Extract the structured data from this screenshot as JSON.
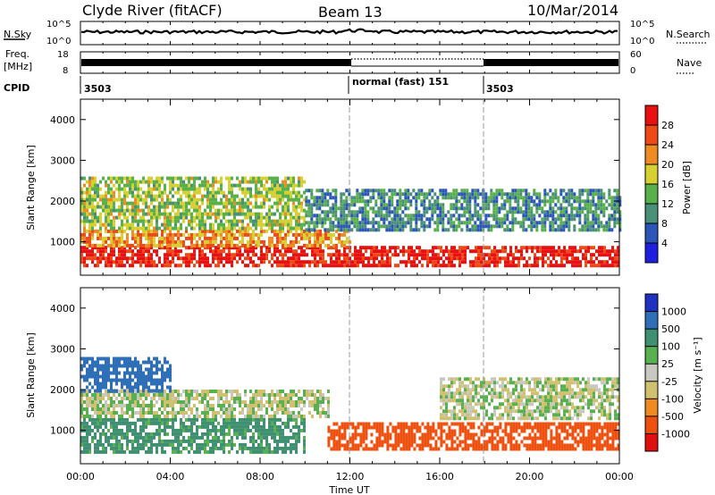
{
  "header": {
    "station": "Clyde River (fitACF)",
    "beam": "Beam 13",
    "date": "10/Mar/2014"
  },
  "noise_panel": {
    "left_label": "N.Sky",
    "right_label": "N.Search",
    "left_ticks": [
      "10^5",
      "10^0"
    ],
    "right_ticks": [
      "10^5",
      "10^0"
    ]
  },
  "freq_panel": {
    "left_label_line1": "Freq.",
    "left_label_line2": "[MHz]",
    "left_ticks": [
      "18",
      "8"
    ],
    "right_ticks": [
      "60",
      "0"
    ],
    "right_label": "Nave"
  },
  "cpid_panel": {
    "label": "CPID",
    "segments": [
      {
        "text": "3503",
        "start_hr": 0
      },
      {
        "text": "normal (fast) 151",
        "start_hr": 12
      },
      {
        "text": "3503",
        "start_hr": 18
      }
    ]
  },
  "chart_data": [
    {
      "type": "heatmap",
      "name": "power",
      "ylabel": "Slant Range [km]",
      "yticks": [
        "1000",
        "2000",
        "3000",
        "4000"
      ],
      "ylim": [
        180,
        4500
      ],
      "colorbar_label": "Power [dB]",
      "colorbar_ticks": [
        "4",
        "8",
        "12",
        "16",
        "20",
        "24",
        "28"
      ],
      "colors": [
        "#1f1fe0",
        "#2b55b8",
        "#4a8f78",
        "#58b04a",
        "#d7d032",
        "#ee8c23",
        "#ee4a17",
        "#e81010"
      ],
      "bands": [
        {
          "hours": [
            0,
            24
          ],
          "range_km": [
            400,
            900
          ],
          "value": 28
        },
        {
          "hours": [
            0,
            12
          ],
          "range_km": [
            900,
            1300
          ],
          "value": 20
        },
        {
          "hours": [
            0,
            10
          ],
          "range_km": [
            1300,
            2600
          ],
          "value": 14
        },
        {
          "hours": [
            10,
            24
          ],
          "range_km": [
            1300,
            2300
          ],
          "value": 8
        }
      ]
    },
    {
      "type": "heatmap",
      "name": "velocity",
      "ylabel": "Slant Range [km]",
      "yticks": [
        "1000",
        "2000",
        "3000",
        "4000"
      ],
      "ylim": [
        180,
        4500
      ],
      "colorbar_label": "Velocity [m s⁻¹]",
      "colorbar_ticks": [
        "1000",
        "500",
        "100",
        "25",
        "-25",
        "-100",
        "-500",
        "-1000"
      ],
      "colors": [
        "#2030c0",
        "#2f6fb8",
        "#3e9070",
        "#58b050",
        "#c8c8c0",
        "#d0c070",
        "#ee8a1f",
        "#ee5010",
        "#e01010"
      ],
      "bands": [
        {
          "hours": [
            0,
            10
          ],
          "range_km": [
            500,
            1300
          ],
          "value": 100
        },
        {
          "hours": [
            0,
            11
          ],
          "range_km": [
            1300,
            2000
          ],
          "value": 0
        },
        {
          "hours": [
            0,
            4
          ],
          "range_km": [
            2000,
            2800
          ],
          "value": 500
        },
        {
          "hours": [
            11,
            24
          ],
          "range_km": [
            500,
            1200
          ],
          "value": -500
        },
        {
          "hours": [
            16,
            24
          ],
          "range_km": [
            1300,
            2300
          ],
          "value": 0
        }
      ]
    }
  ],
  "time_axis": {
    "ticks": [
      "00:00",
      "04:00",
      "08:00",
      "12:00",
      "16:00",
      "20:00",
      "00:00"
    ],
    "label": "Time UT"
  }
}
